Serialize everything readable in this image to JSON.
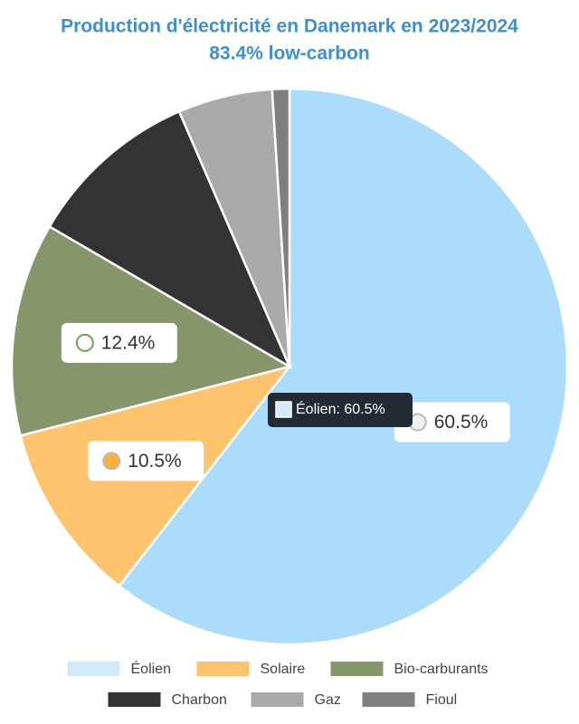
{
  "chart_data": {
    "type": "pie",
    "title": "Production d'électricité en Danemark en 2023/2024",
    "subtitle": "83.4% low-carbon",
    "categories": [
      "Éolien",
      "Solaire",
      "Bio-carburants",
      "Charbon",
      "Gaz",
      "Fioul"
    ],
    "values": [
      60.5,
      10.5,
      12.4,
      10.1,
      5.5,
      1.0
    ],
    "value_labels": [
      "60.5%",
      "10.5%",
      "12.4%",
      null,
      null,
      null
    ],
    "colors": [
      "#acdcfc",
      "#fdc36d",
      "#87966a",
      "#333333",
      "#aaaaaa",
      "#808080"
    ],
    "tooltip": "Éolien: 60.5%"
  }
}
